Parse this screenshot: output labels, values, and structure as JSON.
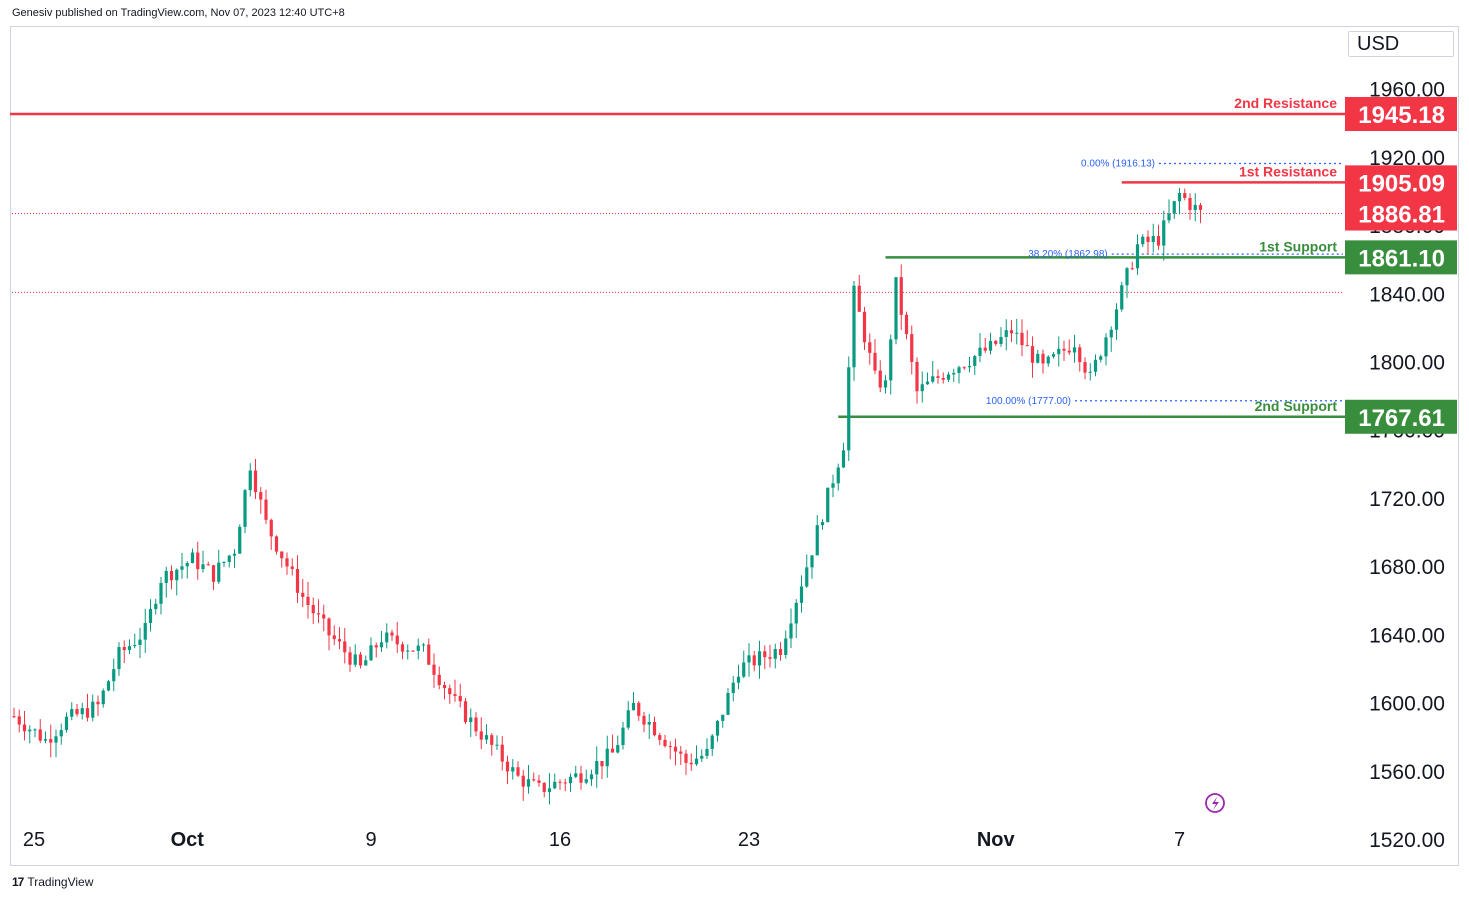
{
  "header": {
    "published": "Genesiv published on TradingView.com, Nov 07, 2023 12:40 UTC+8"
  },
  "footer": {
    "brand": "TradingView",
    "logo_icon": "tradingview-logo-icon"
  },
  "colors": {
    "up": "#089981",
    "down": "#f23645",
    "resistance": "#f23645",
    "support": "#388e3c",
    "fib": "#2962ff",
    "axis_text": "#131722",
    "last_price_line": "#f23645"
  },
  "chart_data": {
    "type": "candlestick",
    "currency": "USD",
    "y_axis_ticks": [
      "1520.00",
      "1560.00",
      "1600.00",
      "1640.00",
      "1680.00",
      "1720.00",
      "1760.00",
      "1800.00",
      "1840.00",
      "1880.00",
      "1920.00",
      "1960.00"
    ],
    "ylim": [
      1493,
      2005
    ],
    "x_axis_ticks": [
      {
        "label": "25",
        "bold": false,
        "index": 0
      },
      {
        "label": "Oct",
        "bold": true,
        "index": 33
      },
      {
        "label": "9",
        "bold": false,
        "index": 68
      },
      {
        "label": "16",
        "bold": false,
        "index": 104
      },
      {
        "label": "23",
        "bold": false,
        "index": 140
      },
      {
        "label": "Nov",
        "bold": true,
        "index": 187
      },
      {
        "label": "7",
        "bold": false,
        "index": 222
      }
    ],
    "levels": [
      {
        "name": "2nd Resistance",
        "value": 1945.18,
        "label": "1945.18",
        "kind": "resistance",
        "start_index": -5
      },
      {
        "name": "1st Resistance",
        "value": 1905.09,
        "label": "1905.09",
        "kind": "resistance",
        "start_index": 211
      },
      {
        "name": "1st Support",
        "value": 1861.1,
        "label": "1861.10",
        "kind": "support",
        "start_index": 166
      },
      {
        "name": "2nd Support",
        "value": 1767.61,
        "label": "1767.61",
        "kind": "support",
        "start_index": 157
      }
    ],
    "last_price": {
      "value": 1886.81,
      "label": "1886.81"
    },
    "dotted_lines": [
      1886.81,
      1840.6
    ],
    "fibonacci": [
      {
        "label": "0.00% (1916.13)",
        "value": 1916.13,
        "start_index": 220
      },
      {
        "label": "38.20% (1862.98)",
        "value": 1862.98,
        "start_index": 211
      },
      {
        "label": "100.00% (1777.00)",
        "value": 1777.0,
        "start_index": 204
      }
    ],
    "waypoints": [
      [
        0,
        1592
      ],
      [
        6,
        1578
      ],
      [
        10,
        1590
      ],
      [
        16,
        1598
      ],
      [
        20,
        1628
      ],
      [
        25,
        1642
      ],
      [
        28,
        1673
      ],
      [
        34,
        1684
      ],
      [
        38,
        1675
      ],
      [
        42,
        1690
      ],
      [
        45,
        1740
      ],
      [
        48,
        1705
      ],
      [
        55,
        1662
      ],
      [
        60,
        1640
      ],
      [
        66,
        1620
      ],
      [
        70,
        1638
      ],
      [
        78,
        1630
      ],
      [
        84,
        1600
      ],
      [
        90,
        1578
      ],
      [
        96,
        1556
      ],
      [
        100,
        1549
      ],
      [
        108,
        1558
      ],
      [
        114,
        1570
      ],
      [
        118,
        1598
      ],
      [
        122,
        1585
      ],
      [
        128,
        1565
      ],
      [
        132,
        1570
      ],
      [
        138,
        1620
      ],
      [
        146,
        1632
      ],
      [
        152,
        1690
      ],
      [
        158,
        1752
      ],
      [
        160,
        1840
      ],
      [
        164,
        1790
      ],
      [
        166,
        1786
      ],
      [
        168,
        1845
      ],
      [
        172,
        1782
      ],
      [
        178,
        1795
      ],
      [
        186,
        1808
      ],
      [
        190,
        1818
      ],
      [
        196,
        1796
      ],
      [
        202,
        1812
      ],
      [
        205,
        1790
      ],
      [
        210,
        1832
      ],
      [
        214,
        1868
      ],
      [
        218,
        1872
      ],
      [
        222,
        1898
      ],
      [
        226,
        1887
      ]
    ],
    "candle_count": 227
  },
  "ui": {
    "flash_icon": "lightning-circle-icon"
  }
}
